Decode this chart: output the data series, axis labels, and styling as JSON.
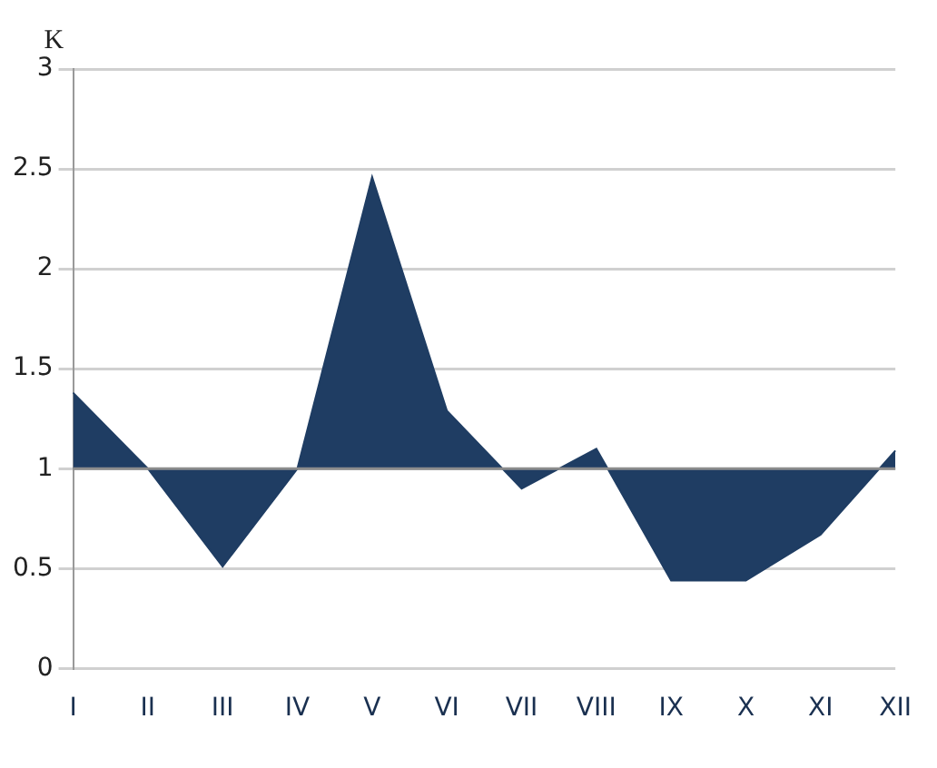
{
  "chart_data": {
    "type": "area",
    "ylabel": "K",
    "categories": [
      "I",
      "II",
      "III",
      "IV",
      "V",
      "VI",
      "VII",
      "VIII",
      "IX",
      "X",
      "XI",
      "XII"
    ],
    "series": [
      {
        "color": "#1f3d63",
        "values": [
          1.38,
          1.0,
          0.51,
          1.0,
          2.46,
          1.29,
          0.9,
          1.1,
          0.44,
          0.44,
          0.67,
          1.09
        ]
      }
    ],
    "ylim": [
      0,
      3
    ],
    "yticks": [
      0,
      0.5,
      1,
      1.5,
      2,
      2.5,
      3
    ],
    "grid": "y",
    "legend": false,
    "ref_lines": [
      {
        "axis": "y",
        "value": 1,
        "color": "#8c8c8c"
      }
    ]
  }
}
